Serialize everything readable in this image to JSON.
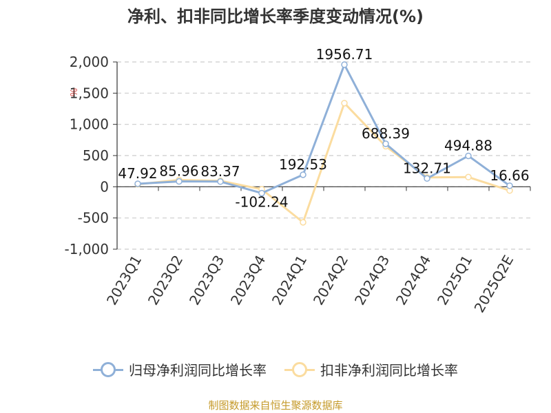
{
  "title": "净利、扣非同比增长率季度变动情况(%)",
  "y_unit_label": "%",
  "source": "制图数据来自恒生聚源数据库",
  "colors": {
    "series1": "#8fb0d8",
    "series2": "#fbdc9f",
    "grid": "#cccccc",
    "axis": "#333333"
  },
  "chart_data": {
    "type": "line",
    "title": "净利、扣非同比增长率季度变动情况(%)",
    "xlabel": "",
    "ylabel": "%",
    "ylim": [
      -1000,
      2000
    ],
    "yticks": [
      -1000,
      -500,
      0,
      500,
      1000,
      1500,
      2000
    ],
    "ytick_labels": [
      "-1,000",
      "-500",
      "0",
      "500",
      "1,000",
      "1,500",
      "2,000"
    ],
    "grid": true,
    "legend_position": "bottom",
    "categories": [
      "2023Q1",
      "2023Q2",
      "2023Q3",
      "2023Q4",
      "2024Q1",
      "2024Q2",
      "2024Q3",
      "2024Q4",
      "2025Q1",
      "2025Q2E"
    ],
    "series": [
      {
        "name": "归母净利润同比增长率",
        "values": [
          47.92,
          85.96,
          83.37,
          -102.24,
          192.53,
          1956.71,
          688.39,
          132.71,
          494.88,
          16.66
        ],
        "labels": [
          "47.92",
          "85.96",
          "83.37",
          "-102.24",
          "192.53",
          "1956.71",
          "688.39",
          "132.71",
          "494.88",
          "16.66"
        ]
      },
      {
        "name": "扣非净利润同比增长率",
        "values": [
          40,
          110,
          95,
          -40,
          -570,
          1340,
          650,
          150,
          155,
          -60
        ]
      }
    ]
  }
}
